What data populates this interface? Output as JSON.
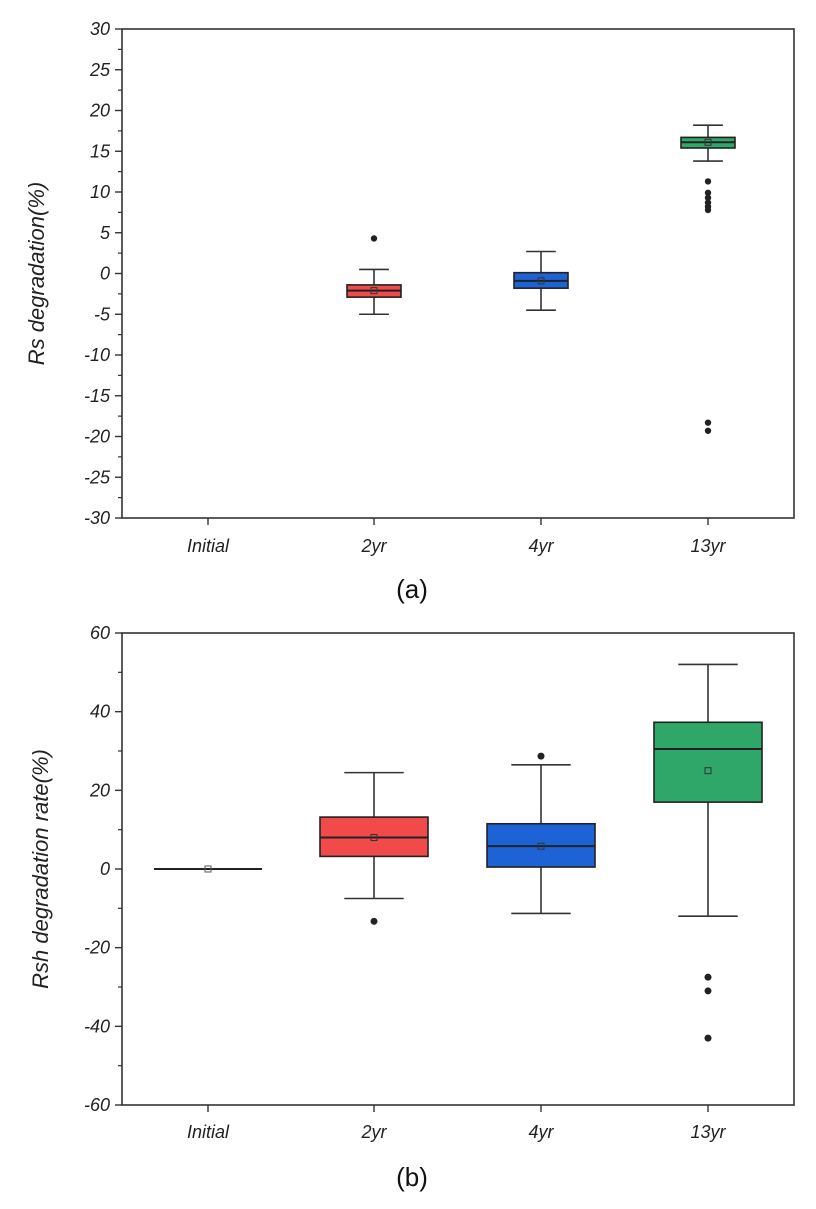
{
  "chart_data": [
    {
      "type": "box",
      "panel_label": "(a)",
      "ylabel": "Rs degradation(%)",
      "xlabel": "",
      "ylim": [
        -30,
        30
      ],
      "yticks": [
        "30",
        "25",
        "20",
        "15",
        "10",
        "5",
        "0",
        "-5",
        "-10",
        "-15",
        "-20",
        "-25",
        "-30"
      ],
      "categories": [
        "Initial",
        "2yr",
        "4yr",
        "13yr"
      ],
      "boxes": [
        {
          "category": "Initial",
          "present": false
        },
        {
          "category": "2yr",
          "color": "#f04a4a",
          "whisker_low": -5.0,
          "q1": -2.9,
          "median": -2.1,
          "mean": -2.1,
          "q3": -1.4,
          "whisker_high": 0.5,
          "outliers": [
            4.3
          ]
        },
        {
          "category": "4yr",
          "color": "#1e63d6",
          "whisker_low": -4.5,
          "q1": -1.8,
          "median": -0.9,
          "mean": -0.9,
          "q3": 0.1,
          "whisker_high": 2.7,
          "outliers": []
        },
        {
          "category": "13yr",
          "color": "#2fa768",
          "whisker_low": 13.8,
          "q1": 15.4,
          "median": 16.1,
          "mean": 16.1,
          "q3": 16.7,
          "whisker_high": 18.2,
          "outliers": [
            11.3,
            9.9,
            9.3,
            8.7,
            8.2,
            7.8,
            -18.3,
            -19.3
          ]
        }
      ]
    },
    {
      "type": "box",
      "panel_label": "(b)",
      "ylabel": "Rsh degradation rate(%)",
      "xlabel": "",
      "ylim": [
        -60,
        60
      ],
      "yticks": [
        "60",
        "40",
        "20",
        "0",
        "-20",
        "-40",
        "-60"
      ],
      "categories": [
        "Initial",
        "2yr",
        "4yr",
        "13yr"
      ],
      "boxes": [
        {
          "category": "Initial",
          "present": true,
          "flat": true,
          "value": 0,
          "mean": 0
        },
        {
          "category": "2yr",
          "color": "#f04a4a",
          "whisker_low": -7.5,
          "q1": 3.2,
          "median": 8.0,
          "mean": 8.0,
          "q3": 13.2,
          "whisker_high": 24.5,
          "outliers": [
            -13.3
          ]
        },
        {
          "category": "4yr",
          "color": "#1e63d6",
          "whisker_low": -11.3,
          "q1": 0.5,
          "median": 5.8,
          "mean": 5.8,
          "q3": 11.5,
          "whisker_high": 26.5,
          "outliers": [
            28.7
          ]
        },
        {
          "category": "13yr",
          "color": "#2fa768",
          "whisker_low": -12.0,
          "q1": 17.0,
          "median": 30.5,
          "mean": 25.0,
          "q3": 37.3,
          "whisker_high": 52.0,
          "outliers": [
            -27.5,
            -31.0,
            -43.0
          ]
        }
      ]
    }
  ]
}
